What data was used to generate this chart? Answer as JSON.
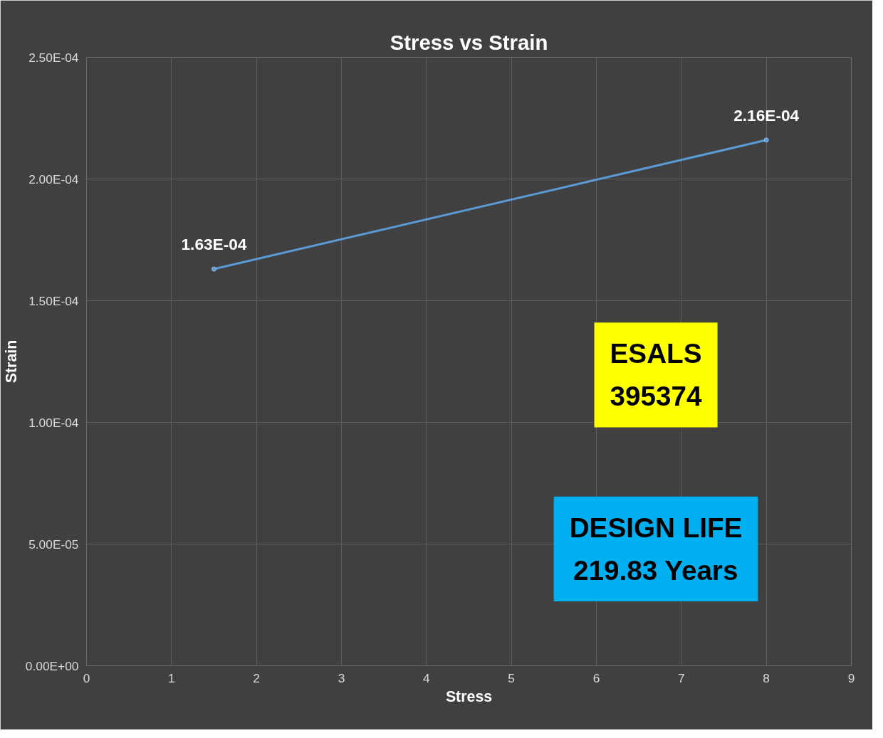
{
  "chart_data": {
    "type": "line",
    "title": "Stress vs Strain",
    "xlabel": "Stress",
    "ylabel": "Strain",
    "x": [
      1.5,
      8
    ],
    "series": [
      {
        "color": "#5b9bd5",
        "values": [
          0.000163,
          0.000216
        ],
        "value_labels": [
          "1.63E-04",
          "2.16E-04"
        ]
      }
    ],
    "xlim": [
      0,
      9
    ],
    "xticks": [
      0,
      1,
      2,
      3,
      4,
      5,
      6,
      7,
      8,
      9
    ],
    "ylim": [
      0,
      0.00025
    ],
    "yticks": [
      {
        "value": 0,
        "label": "0.00E+00"
      },
      {
        "value": 5e-05,
        "label": "5.00E-05"
      },
      {
        "value": 0.0001,
        "label": "1.00E-04"
      },
      {
        "value": 0.00015,
        "label": "1.50E-04"
      },
      {
        "value": 0.0002,
        "label": "2.00E-04"
      },
      {
        "value": 0.00025,
        "label": "2.50E-04"
      }
    ],
    "grid": true,
    "marker": "circle",
    "line_style": "solid",
    "annotations": [
      "ESALS\n395374",
      "DESIGN LIFE\n219.83 Years"
    ]
  }
}
